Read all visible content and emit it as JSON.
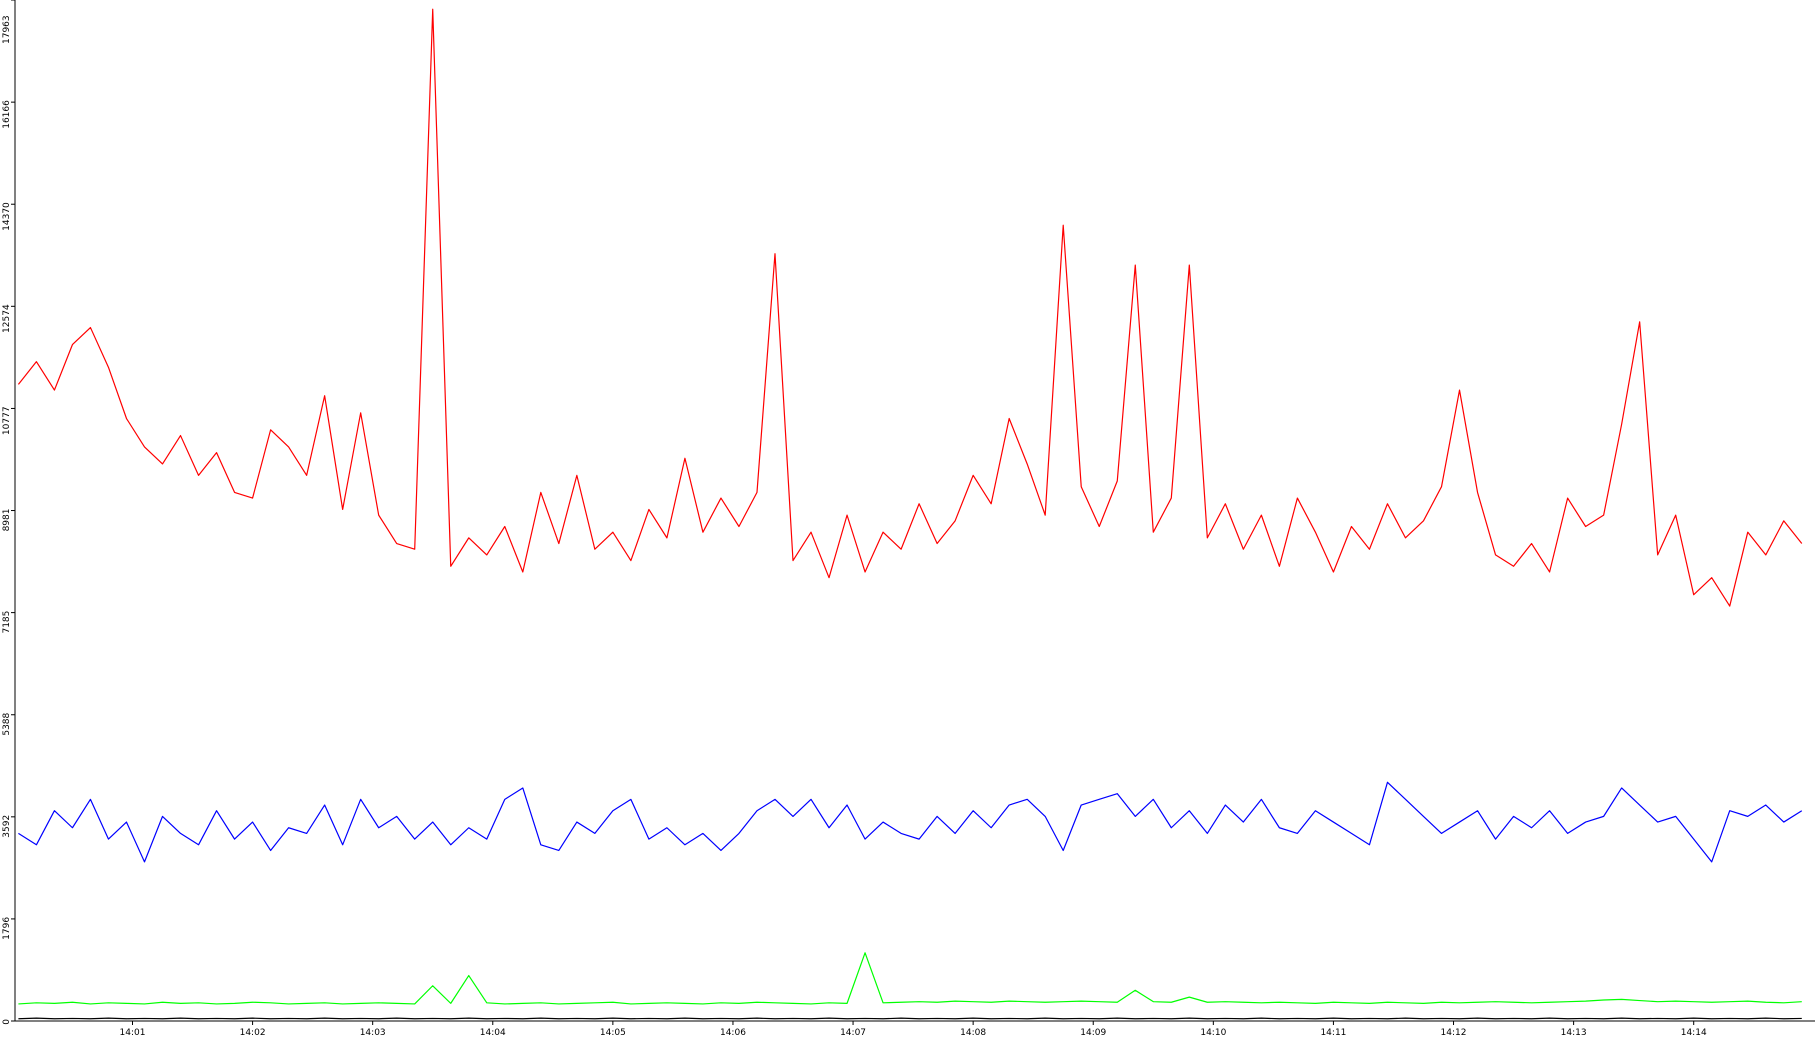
{
  "chart_data": {
    "type": "line",
    "x": [
      0.05,
      0.2,
      0.35,
      0.5,
      0.65,
      0.8,
      0.95,
      1.1,
      1.25,
      1.4,
      1.55,
      1.7,
      1.85,
      2,
      2.15,
      2.3,
      2.45,
      2.6,
      2.75,
      2.9,
      3.05,
      3.2,
      3.35,
      3.5,
      3.65,
      3.8,
      3.95,
      4.1,
      4.25,
      4.4,
      4.55,
      4.7,
      4.85,
      5,
      5.15,
      5.3,
      5.45,
      5.6,
      5.75,
      5.9,
      6.05,
      6.2,
      6.35,
      6.5,
      6.65,
      6.8,
      6.95,
      7.1,
      7.25,
      7.4,
      7.55,
      7.7,
      7.85,
      8,
      8.15,
      8.3,
      8.45,
      8.6,
      8.75,
      8.9,
      9.05,
      9.2,
      9.35,
      9.5,
      9.65,
      9.8,
      9.95,
      10.1,
      10.25,
      10.4,
      10.55,
      10.7,
      10.85,
      11,
      11.15,
      11.3,
      11.45,
      11.6,
      11.75,
      11.9,
      12.05,
      12.2,
      12.35,
      12.5,
      12.65,
      12.8,
      12.95,
      13.1,
      13.25,
      13.4,
      13.55,
      13.7,
      13.85,
      14,
      14.15,
      14.3,
      14.45,
      14.6,
      14.75,
      14.9
    ],
    "series": [
      {
        "color": "#ff0000",
        "values": [
          11200,
          11600,
          11100,
          11900,
          12200,
          11500,
          10600,
          10100,
          9800,
          10300,
          9600,
          10000,
          9300,
          9200,
          10400,
          10100,
          9600,
          11000,
          9000,
          10700,
          8900,
          8400,
          8300,
          17800,
          8000,
          8500,
          8200,
          8700,
          7900,
          9300,
          8400,
          9600,
          8300,
          8600,
          8100,
          9000,
          8500,
          9900,
          8600,
          9200,
          8700,
          9300,
          13500,
          8100,
          8600,
          7800,
          8900,
          7900,
          8600,
          8300,
          9100,
          8400,
          8800,
          9600,
          9100,
          10600,
          9800,
          8900,
          14000,
          9400,
          8700,
          9500,
          13300,
          8600,
          9200,
          13300,
          8500,
          9100,
          8300,
          8900,
          8000,
          9200,
          8600,
          7900,
          8700,
          8300,
          9100,
          8500,
          8800,
          9400,
          11100,
          9300,
          8200,
          8000,
          8400,
          7900,
          9200,
          8700,
          8900,
          10500,
          12300,
          8200,
          8900,
          7500,
          7800,
          7300,
          8600,
          8200,
          8800,
          8400
        ]
      },
      {
        "color": "#0000ff",
        "values": [
          3300,
          3100,
          3700,
          3400,
          3900,
          3200,
          3500,
          2800,
          3600,
          3300,
          3100,
          3700,
          3200,
          3500,
          3000,
          3400,
          3300,
          3800,
          3100,
          3900,
          3400,
          3600,
          3200,
          3500,
          3100,
          3400,
          3200,
          3900,
          4100,
          3100,
          3000,
          3500,
          3300,
          3700,
          3900,
          3200,
          3400,
          3100,
          3300,
          3000,
          3300,
          3700,
          3900,
          3600,
          3900,
          3400,
          3800,
          3200,
          3500,
          3300,
          3200,
          3600,
          3300,
          3700,
          3400,
          3800,
          3900,
          3600,
          3000,
          3800,
          3900,
          4000,
          3600,
          3900,
          3400,
          3700,
          3300,
          3800,
          3500,
          3900,
          3400,
          3300,
          3700,
          3500,
          3300,
          3100,
          4200,
          3900,
          3600,
          3300,
          3500,
          3700,
          3200,
          3600,
          3400,
          3700,
          3300,
          3500,
          3600,
          4100,
          3800,
          3500,
          3600,
          3200,
          2800,
          3700,
          3600,
          3800,
          3500,
          3700
        ]
      },
      {
        "color": "#00ff00",
        "values": [
          300,
          320,
          310,
          330,
          300,
          320,
          310,
          300,
          330,
          310,
          320,
          300,
          310,
          330,
          320,
          300,
          310,
          320,
          300,
          310,
          320,
          310,
          300,
          620,
          310,
          800,
          320,
          300,
          310,
          320,
          300,
          310,
          320,
          330,
          300,
          310,
          320,
          310,
          300,
          320,
          310,
          330,
          320,
          310,
          300,
          320,
          310,
          1200,
          320,
          330,
          340,
          330,
          350,
          340,
          330,
          350,
          340,
          330,
          340,
          350,
          340,
          330,
          540,
          340,
          330,
          420,
          330,
          340,
          330,
          320,
          330,
          320,
          310,
          330,
          320,
          310,
          330,
          320,
          310,
          330,
          320,
          330,
          340,
          330,
          320,
          330,
          340,
          350,
          370,
          380,
          360,
          340,
          350,
          340,
          330,
          340,
          350,
          330,
          320,
          340
        ]
      },
      {
        "color": "#000000",
        "values": [
          40,
          50,
          40,
          45,
          40,
          50,
          40,
          45,
          40,
          50,
          40,
          45,
          40,
          50,
          40,
          45,
          40,
          50,
          40,
          45,
          40,
          50,
          40,
          45,
          40,
          50,
          40,
          45,
          40,
          50,
          40,
          45,
          40,
          50,
          40,
          45,
          40,
          50,
          40,
          45,
          40,
          50,
          40,
          45,
          40,
          50,
          40,
          45,
          40,
          50,
          40,
          45,
          40,
          50,
          40,
          45,
          40,
          50,
          40,
          45,
          40,
          50,
          40,
          45,
          40,
          50,
          40,
          45,
          40,
          50,
          40,
          45,
          40,
          50,
          40,
          45,
          40,
          50,
          40,
          45,
          40,
          50,
          40,
          45,
          40,
          50,
          40,
          45,
          40,
          50,
          40,
          45,
          40,
          50,
          40,
          45,
          40,
          50,
          40,
          45
        ]
      }
    ],
    "xlim": [
      0.03,
      15.01
    ],
    "xticks": [
      {
        "value": 1,
        "label": "14:01"
      },
      {
        "value": 2,
        "label": "14:02"
      },
      {
        "value": 3,
        "label": "14:03"
      },
      {
        "value": 4,
        "label": "14:04"
      },
      {
        "value": 5,
        "label": "14:05"
      },
      {
        "value": 6,
        "label": "14:06"
      },
      {
        "value": 7,
        "label": "14:07"
      },
      {
        "value": 8,
        "label": "14:08"
      },
      {
        "value": 9,
        "label": "14:09"
      },
      {
        "value": 10,
        "label": "14:10"
      },
      {
        "value": 11,
        "label": "14:11"
      },
      {
        "value": 12,
        "label": "14:12"
      },
      {
        "value": 13,
        "label": "14:13"
      },
      {
        "value": 14,
        "label": "14:14"
      }
    ],
    "ylim": [
      0,
      17963
    ],
    "yticks": [
      0,
      1796,
      3592,
      5388,
      7185,
      8981,
      10777,
      12574,
      14370,
      16166,
      17963
    ]
  }
}
